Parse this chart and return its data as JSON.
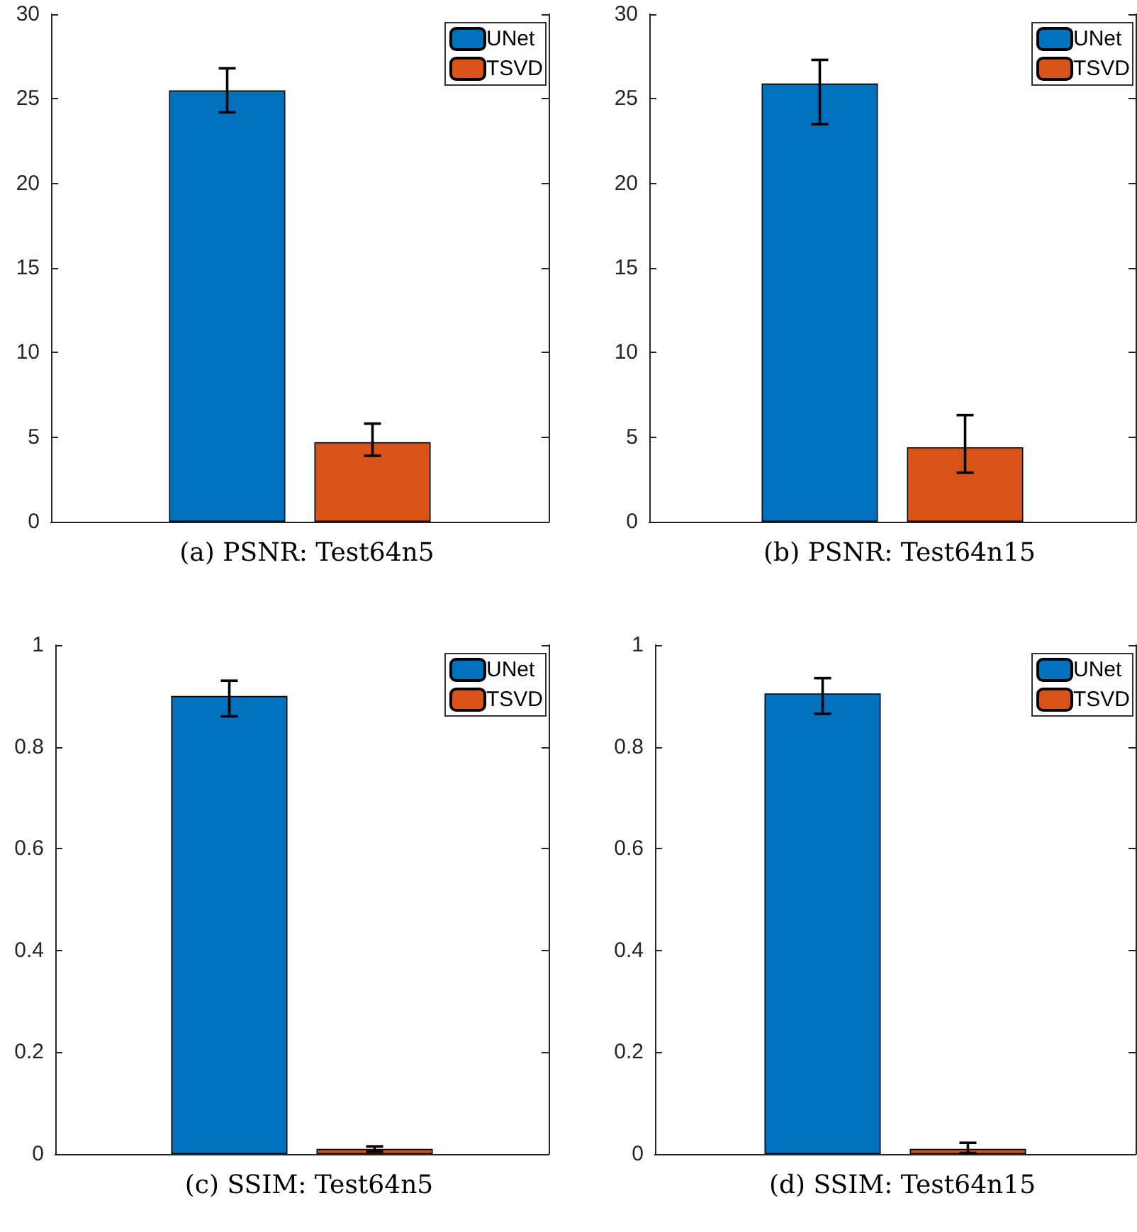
{
  "chart_data": [
    {
      "type": "bar",
      "title": "(a) PSNR: Test64n5",
      "categories": [
        null
      ],
      "series": [
        {
          "name": "UNet",
          "color": "#0072bd",
          "values": [
            25.5
          ],
          "errors": [
            [
              24.2,
              26.8
            ]
          ]
        },
        {
          "name": "TSVD",
          "color": "#d95319",
          "values": [
            4.7
          ],
          "errors": [
            [
              3.9,
              5.8
            ]
          ]
        }
      ],
      "ylim": [
        0,
        30
      ],
      "yticks": [
        0,
        5,
        10,
        15,
        20,
        25,
        30
      ],
      "legend": "top right",
      "grid": false
    },
    {
      "type": "bar",
      "title": "(b) PSNR: Test64n15",
      "categories": [
        null
      ],
      "series": [
        {
          "name": "UNet",
          "color": "#0072bd",
          "values": [
            25.9
          ],
          "errors": [
            [
              23.5,
              27.3
            ]
          ]
        },
        {
          "name": "TSVD",
          "color": "#d95319",
          "values": [
            4.4
          ],
          "errors": [
            [
              2.9,
              6.3
            ]
          ]
        }
      ],
      "ylim": [
        0,
        30
      ],
      "yticks": [
        0,
        5,
        10,
        15,
        20,
        25,
        30
      ],
      "legend": "top right",
      "grid": false
    },
    {
      "type": "bar",
      "title": "(c) SSIM: Test64n5",
      "categories": [
        null
      ],
      "series": [
        {
          "name": "UNet",
          "color": "#0072bd",
          "values": [
            0.9
          ],
          "errors": [
            [
              0.86,
              0.93
            ]
          ]
        },
        {
          "name": "TSVD",
          "color": "#d95319",
          "values": [
            0.01
          ],
          "errors": [
            [
              0.005,
              0.015
            ]
          ]
        }
      ],
      "ylim": [
        0,
        1
      ],
      "yticks": [
        0,
        0.2,
        0.4,
        0.6,
        0.8,
        1
      ],
      "legend": "top right",
      "grid": false
    },
    {
      "type": "bar",
      "title": "(d) SSIM: Test64n15",
      "categories": [
        null
      ],
      "series": [
        {
          "name": "UNet",
          "color": "#0072bd",
          "values": [
            0.905
          ],
          "errors": [
            [
              0.865,
              0.935
            ]
          ]
        },
        {
          "name": "TSVD",
          "color": "#d95319",
          "values": [
            0.01
          ],
          "errors": [
            [
              0.002,
              0.022
            ]
          ]
        }
      ],
      "ylim": [
        0,
        1
      ],
      "yticks": [
        0,
        0.2,
        0.4,
        0.6,
        0.8,
        1
      ],
      "legend": "top right",
      "grid": false
    }
  ]
}
